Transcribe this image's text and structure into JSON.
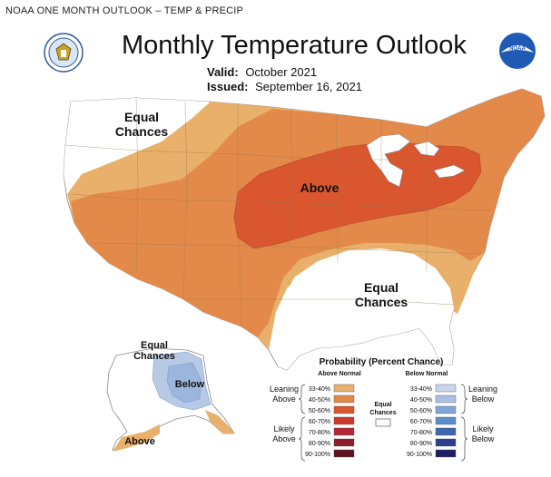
{
  "header": {
    "caption": "NOAA ONE MONTH OUTLOOK – TEMP & PRECIP",
    "title": "Monthly Temperature Outlook",
    "valid_label": "Valid:",
    "valid_value": "October 2021",
    "issued_label": "Issued:",
    "issued_value": "September 16, 2021"
  },
  "logos": {
    "left": "noaa-commerce-seal-icon",
    "right": "noaa-logo-icon"
  },
  "colors": {
    "above_33_40": "#e8b06a",
    "above_40_50": "#e3894a",
    "above_50_60": "#d9562f",
    "below_33_40": "#b8c9e6",
    "below_40_50": "#9bb5dd",
    "equal": "#ffffff"
  },
  "map_labels": {
    "equal_nw": [
      "Equal",
      "Chances"
    ],
    "above_center": "Above",
    "equal_se": [
      "Equal",
      "Chances"
    ],
    "ak_equal": [
      "Equal",
      "Chances"
    ],
    "ak_below": "Below",
    "ak_above": "Above"
  },
  "legend": {
    "title": "Probability (Percent Chance)",
    "above_header": "Above Normal",
    "below_header": "Below Normal",
    "above_ranges": [
      "33-40%",
      "40-50%",
      "50-60%",
      "60-70%",
      "70-80%",
      "80-90%",
      "90-100%"
    ],
    "below_ranges": [
      "33-40%",
      "40-50%",
      "50-60%",
      "60-70%",
      "70-80%",
      "80-90%",
      "90-100%"
    ],
    "above_colors": [
      "#e8b06a",
      "#e3894a",
      "#d9562f",
      "#c93a2c",
      "#b52736",
      "#8c1c2e",
      "#5e1420"
    ],
    "below_colors": [
      "#c7d4ea",
      "#a9bfe3",
      "#7fa6d8",
      "#5b8dcb",
      "#3e68b0",
      "#2a3f8f",
      "#1c1f63"
    ],
    "leaning_above": [
      "Leaning",
      "Above"
    ],
    "likely_above": [
      "Likely",
      "Above"
    ],
    "leaning_below": [
      "Leaning",
      "Below"
    ],
    "likely_below": [
      "Likely",
      "Below"
    ],
    "equal_chances": [
      "Equal",
      "Chances"
    ]
  }
}
